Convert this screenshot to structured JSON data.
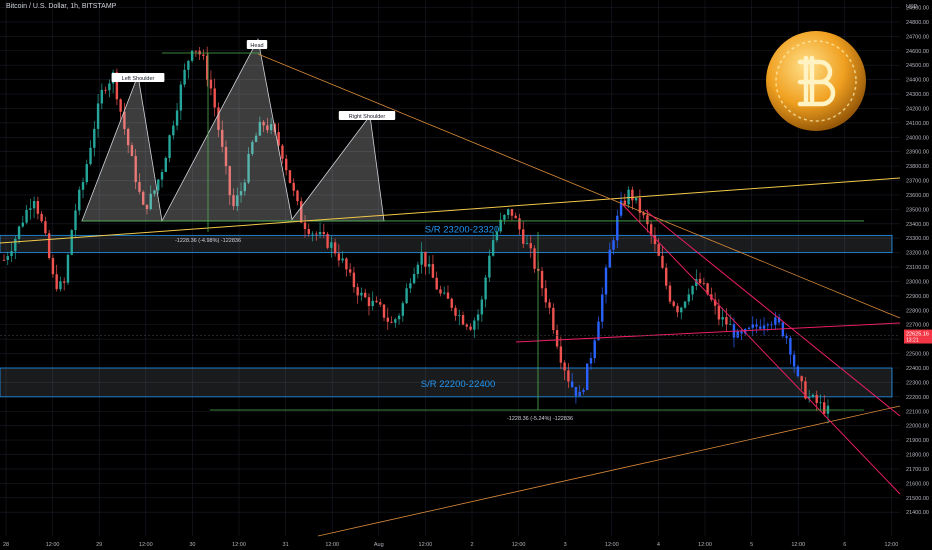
{
  "header": {
    "symbol_title": "Bitcoin / U.S. Dollar, 1h, BITSTAMP"
  },
  "colors": {
    "up": "#26a69a",
    "down": "#ef5350",
    "blue": "#2962ff",
    "grid": "#1a1d26",
    "yellow": "#f2c94c",
    "orange": "#d98a3a",
    "pink": "#e91e63",
    "green": "#4caf50",
    "zone_border": "#2196f3",
    "zone_label": "#2196f3",
    "price_tag": "#f23645"
  },
  "chart_data": {
    "type": "candlestick",
    "title": "Bitcoin / U.S. Dollar, 1h, BITSTAMP",
    "y_axis_unit": "USD",
    "ylim": [
      21350,
      24950
    ],
    "y_ticks": [
      24900,
      24800,
      24700,
      24600,
      24500,
      24400,
      24300,
      24200,
      24100,
      24000,
      23900,
      23800,
      23700,
      23600,
      23500,
      23400,
      23300,
      23200,
      23100,
      23000,
      22900,
      22800,
      22700,
      22600,
      22500,
      22400,
      22300,
      22200,
      22100,
      22000,
      21900,
      21800,
      21700,
      21600,
      21500,
      21400
    ],
    "x_ticks": [
      "28",
      "12:00",
      "29",
      "12:00",
      "30",
      "12:00",
      "31",
      "12:00",
      "Aug",
      "12:00",
      "2",
      "12:00",
      "3",
      "12:00",
      "4",
      "12:00",
      "5",
      "12:00",
      "6",
      "12:00"
    ],
    "current_price": {
      "price": "22625.16",
      "countdown": "13:21"
    },
    "zones": [
      {
        "label": "S/R 23200-23320",
        "low": 23200,
        "high": 23320
      },
      {
        "label": "S/R 22200-22400",
        "low": 22200,
        "high": 22400
      }
    ],
    "pattern_labels": [
      "Left Shoulder",
      "Head",
      "Right Shoulder"
    ],
    "measurements": [
      "-1228.36 (-4.98%) -122836",
      "-1228.36 (-5.24%) -122836"
    ],
    "pattern_points": [
      {
        "role": "start",
        "price": 23420
      },
      {
        "role": "left_shoulder",
        "price": 24430
      },
      {
        "role": "neckline_1",
        "price": 23420
      },
      {
        "role": "head",
        "price": 24680
      },
      {
        "role": "neckline_2",
        "price": 23430
      },
      {
        "role": "right_shoulder",
        "price": 24150
      },
      {
        "role": "neckline_end",
        "price": 23420
      }
    ],
    "candle_path": [
      23150,
      23280,
      23450,
      23600,
      23350,
      23000,
      22950,
      23450,
      23700,
      24050,
      24350,
      24430,
      24100,
      23800,
      23500,
      23600,
      23800,
      24100,
      24400,
      24650,
      24550,
      24300,
      23900,
      23500,
      23650,
      23950,
      24100,
      24050,
      23900,
      23650,
      23420,
      23350,
      23300,
      23250,
      23150,
      23000,
      22900,
      22850,
      22800,
      22700,
      22800,
      23050,
      23200,
      23050,
      22900,
      22850,
      22750,
      22700,
      22800,
      23250,
      23400,
      23500,
      23350,
      23200,
      23000,
      22800,
      22500,
      22300,
      22200,
      22450,
      22800,
      23200,
      23500,
      23620,
      23500,
      23350,
      23150,
      22900,
      22800,
      22950,
      23000,
      22900,
      22750,
      22700,
      22600,
      22650,
      22700,
      22750,
      22700,
      22600,
      22300,
      22200,
      22150,
      22100
    ]
  }
}
